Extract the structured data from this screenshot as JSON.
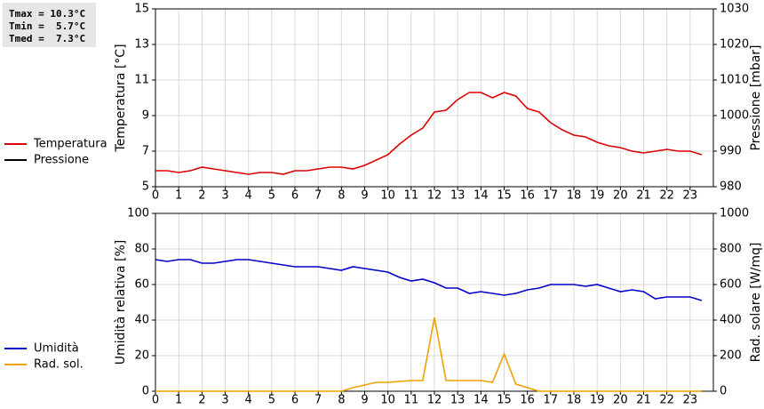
{
  "chart_data": [
    {
      "type": "line",
      "annotations": [
        "Tmax = 10.3°C",
        "Tmin =  5.7°C",
        "Tmed =  7.3°C"
      ],
      "ylabel": "Temperatura [°C]",
      "y2label": "Pressione [mbar]",
      "xlim": [
        0,
        24
      ],
      "xticks": [
        0,
        1,
        2,
        3,
        4,
        5,
        6,
        7,
        8,
        9,
        10,
        11,
        12,
        13,
        14,
        15,
        16,
        17,
        18,
        19,
        20,
        21,
        22,
        23
      ],
      "ylim": [
        5,
        15
      ],
      "yticks": [
        5,
        7,
        9,
        11,
        13,
        15
      ],
      "y2lim": [
        980,
        1030
      ],
      "y2ticks": [
        980,
        990,
        1000,
        1010,
        1020,
        1030
      ],
      "grid": true,
      "x": [
        0,
        0.5,
        1,
        1.5,
        2,
        2.5,
        3,
        3.5,
        4,
        4.5,
        5,
        5.5,
        6,
        6.5,
        7,
        7.5,
        8,
        8.5,
        9,
        9.5,
        10,
        10.5,
        11,
        11.5,
        12,
        12.5,
        13,
        13.5,
        14,
        14.5,
        15,
        15.5,
        16,
        16.5,
        17,
        17.5,
        18,
        18.5,
        19,
        19.5,
        20,
        20.5,
        21,
        21.5,
        22,
        22.5,
        23,
        23.5
      ],
      "series": [
        {
          "name": "Temperatura",
          "color": "#dd0000",
          "values": [
            5.9,
            5.9,
            5.8,
            5.9,
            6.1,
            6.0,
            5.9,
            5.8,
            5.7,
            5.8,
            5.8,
            5.7,
            5.9,
            5.9,
            6.0,
            6.1,
            6.1,
            6.0,
            6.2,
            6.5,
            6.8,
            7.4,
            7.9,
            8.3,
            9.2,
            9.3,
            9.9,
            10.3,
            10.3,
            10.0,
            10.3,
            10.1,
            9.4,
            9.2,
            8.6,
            8.2,
            7.9,
            7.8,
            7.5,
            7.3,
            7.2,
            7.0,
            6.9,
            7.0,
            7.1,
            7.0,
            7.0,
            6.8
          ]
        },
        {
          "name": "Pressione",
          "color": "#000000",
          "axis": "y2",
          "values": [
            null,
            null,
            null,
            null,
            null,
            null,
            null,
            null,
            null,
            null,
            null,
            null,
            null,
            null,
            null,
            null,
            null,
            null,
            null,
            null,
            null,
            null,
            null,
            null,
            null,
            null,
            null,
            null,
            null,
            null,
            null,
            null,
            null,
            null,
            null,
            null,
            null,
            null,
            null,
            null,
            null,
            null,
            null,
            null,
            null,
            null,
            null,
            null
          ]
        }
      ]
    },
    {
      "type": "line",
      "ylabel": "Umidità relativa [%]",
      "y2label": "Rad. solare [W/mq]",
      "xlim": [
        0,
        24
      ],
      "xticks": [
        0,
        1,
        2,
        3,
        4,
        5,
        6,
        7,
        8,
        9,
        10,
        11,
        12,
        13,
        14,
        15,
        16,
        17,
        18,
        19,
        20,
        21,
        22,
        23
      ],
      "ylim": [
        0,
        100
      ],
      "yticks": [
        0,
        20,
        40,
        60,
        80,
        100
      ],
      "y2lim": [
        0,
        1000
      ],
      "y2ticks": [
        0,
        200,
        400,
        600,
        800,
        1000
      ],
      "grid": true,
      "x": [
        0,
        0.5,
        1,
        1.5,
        2,
        2.5,
        3,
        3.5,
        4,
        4.5,
        5,
        5.5,
        6,
        6.5,
        7,
        7.5,
        8,
        8.5,
        9,
        9.5,
        10,
        10.5,
        11,
        11.5,
        12,
        12.5,
        13,
        13.5,
        14,
        14.5,
        15,
        15.5,
        16,
        16.5,
        17,
        17.5,
        18,
        18.5,
        19,
        19.5,
        20,
        20.5,
        21,
        21.5,
        22,
        22.5,
        23,
        23.5
      ],
      "series": [
        {
          "name": "Umidità",
          "color": "#0000cc",
          "values": [
            74,
            73,
            74,
            74,
            72,
            72,
            73,
            74,
            74,
            73,
            72,
            71,
            70,
            70,
            70,
            69,
            68,
            70,
            69,
            68,
            67,
            64,
            62,
            63,
            61,
            58,
            58,
            55,
            56,
            55,
            54,
            55,
            57,
            58,
            60,
            60,
            60,
            59,
            60,
            58,
            56,
            57,
            56,
            52,
            53,
            53,
            53,
            51
          ]
        },
        {
          "name": "Rad. sol.",
          "color": "#f0a000",
          "axis": "y2",
          "values": [
            0,
            0,
            0,
            0,
            0,
            0,
            0,
            0,
            0,
            0,
            0,
            0,
            0,
            0,
            0,
            0,
            0,
            20,
            35,
            50,
            50,
            55,
            60,
            60,
            415,
            60,
            60,
            60,
            60,
            50,
            210,
            40,
            20,
            0,
            0,
            0,
            0,
            0,
            0,
            0,
            0,
            0,
            0,
            0,
            0,
            0,
            0,
            0
          ]
        }
      ]
    }
  ]
}
